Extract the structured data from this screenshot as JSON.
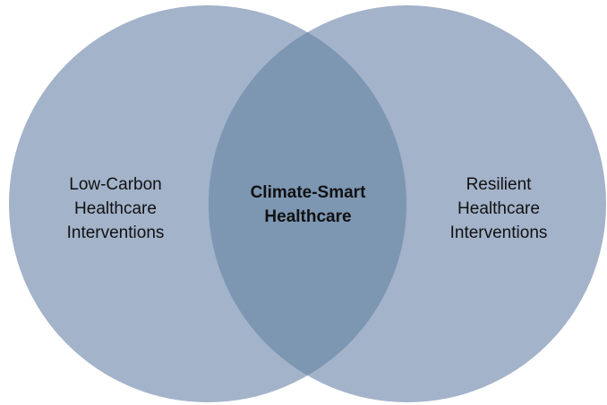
{
  "sets": [
    {
      "label": [
        "Low-Carbon",
        "Healthcare",
        "Interventions"
      ]
    },
    {
      "label": [
        "Resilient",
        "Healthcare",
        "Interventions"
      ]
    }
  ],
  "intersection": {
    "label": [
      "Climate-Smart",
      "Healthcare"
    ]
  }
}
